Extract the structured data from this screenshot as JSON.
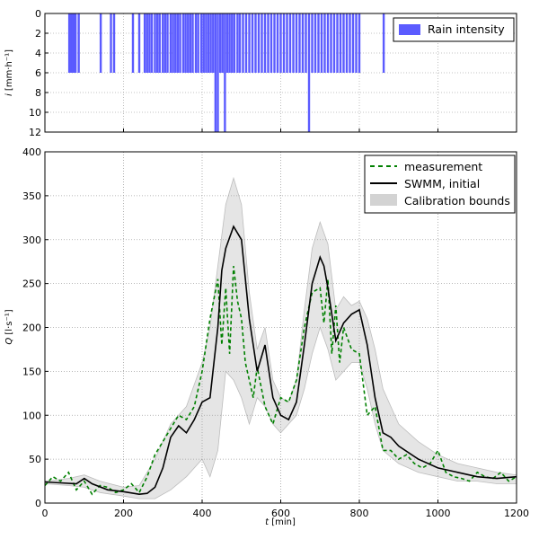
{
  "chart_data": [
    {
      "type": "bar",
      "panel": "top",
      "ylabel": "i [mm·h⁻¹]",
      "ylim": [
        12,
        0
      ],
      "y_inverted": true,
      "yticks": [
        0,
        2,
        4,
        6,
        8,
        10,
        12
      ],
      "xlim": [
        0,
        1200
      ],
      "legend": {
        "placement": "top-right",
        "entries": [
          {
            "label": "Rain intensity",
            "color": "#5b5bff"
          }
        ]
      },
      "bar_color": "#5b5bff",
      "bars_x": [
        62,
        66,
        70,
        74,
        78,
        86,
        142,
        168,
        176,
        224,
        240,
        254,
        260,
        266,
        272,
        280,
        286,
        292,
        300,
        306,
        312,
        320,
        326,
        332,
        338,
        344,
        352,
        358,
        364,
        370,
        376,
        384,
        390,
        398,
        404,
        410,
        416,
        422,
        428,
        434,
        440,
        446,
        452,
        458,
        464,
        470,
        476,
        482,
        490,
        496,
        504,
        512,
        520,
        528,
        536,
        544,
        552,
        560,
        568,
        576,
        584,
        592,
        600,
        608,
        616,
        624,
        632,
        640,
        648,
        656,
        664,
        672,
        680,
        688,
        696,
        704,
        712,
        720,
        728,
        736,
        744,
        752,
        760,
        768,
        776,
        784,
        792,
        800,
        862
      ],
      "bars_intensity": [
        6,
        6,
        6,
        6,
        6,
        6,
        6,
        6,
        6,
        6,
        6,
        6,
        6,
        6,
        6,
        6,
        6,
        6,
        6,
        6,
        6,
        6,
        6,
        6,
        6,
        6,
        6,
        6,
        6,
        6,
        6,
        6,
        6,
        6,
        6,
        6,
        6,
        6,
        6,
        12,
        12,
        6,
        6,
        12,
        6,
        6,
        6,
        6,
        6,
        6,
        6,
        6,
        6,
        6,
        6,
        6,
        6,
        6,
        6,
        6,
        6,
        6,
        6,
        6,
        6,
        6,
        6,
        6,
        6,
        6,
        6,
        12,
        6,
        6,
        6,
        6,
        6,
        6,
        6,
        6,
        6,
        6,
        6,
        6,
        6,
        6,
        6,
        6,
        6
      ],
      "grid": true
    },
    {
      "type": "line",
      "panel": "bottom",
      "xlabel": "t [min]",
      "ylabel": "Q [l·s⁻¹]",
      "xlim": [
        0,
        1200
      ],
      "ylim": [
        0,
        400
      ],
      "xticks": [
        0,
        200,
        400,
        600,
        800,
        1000,
        1200
      ],
      "yticks": [
        0,
        50,
        100,
        150,
        200,
        250,
        300,
        350,
        400
      ],
      "grid": true,
      "legend": {
        "placement": "top-right",
        "entries": [
          {
            "label": "measurement",
            "style": "dashed",
            "color": "#008000"
          },
          {
            "label": "SWMM, initial",
            "style": "solid",
            "color": "#000000"
          },
          {
            "label": "Calibration bounds",
            "style": "fill",
            "color": "#d3d3d3"
          }
        ]
      },
      "series": [
        {
          "name": "SWMM, initial",
          "color": "#000000",
          "x": [
            0,
            40,
            80,
            100,
            120,
            160,
            200,
            240,
            260,
            280,
            300,
            320,
            340,
            360,
            380,
            400,
            420,
            440,
            450,
            460,
            480,
            500,
            520,
            540,
            560,
            580,
            600,
            620,
            640,
            660,
            680,
            700,
            710,
            720,
            740,
            760,
            780,
            800,
            820,
            840,
            860,
            880,
            900,
            950,
            1000,
            1050,
            1100,
            1150,
            1200
          ],
          "y": [
            24,
            23,
            22,
            28,
            22,
            15,
            13,
            10,
            11,
            18,
            40,
            75,
            88,
            80,
            95,
            115,
            120,
            200,
            265,
            290,
            315,
            300,
            210,
            150,
            180,
            120,
            100,
            95,
            115,
            180,
            250,
            280,
            270,
            245,
            185,
            205,
            215,
            220,
            180,
            120,
            80,
            75,
            65,
            50,
            40,
            35,
            30,
            28,
            30
          ]
        },
        {
          "name": "measurement",
          "color": "#008000",
          "style": "dashed",
          "x": [
            0,
            20,
            40,
            60,
            80,
            100,
            120,
            140,
            160,
            180,
            200,
            220,
            240,
            260,
            280,
            300,
            320,
            340,
            360,
            380,
            400,
            420,
            440,
            450,
            460,
            470,
            480,
            490,
            500,
            510,
            520,
            530,
            540,
            560,
            580,
            600,
            620,
            640,
            660,
            680,
            700,
            710,
            720,
            730,
            740,
            750,
            760,
            780,
            800,
            820,
            840,
            860,
            880,
            900,
            920,
            940,
            960,
            980,
            1000,
            1020,
            1040,
            1060,
            1080,
            1100,
            1120,
            1140,
            1160,
            1180,
            1200
          ],
          "y": [
            20,
            30,
            25,
            35,
            15,
            25,
            10,
            20,
            18,
            12,
            15,
            22,
            12,
            30,
            55,
            70,
            85,
            100,
            95,
            110,
            150,
            210,
            255,
            180,
            245,
            170,
            270,
            230,
            210,
            160,
            140,
            120,
            155,
            110,
            90,
            120,
            115,
            140,
            200,
            240,
            245,
            205,
            255,
            170,
            225,
            160,
            200,
            175,
            170,
            100,
            110,
            60,
            60,
            50,
            55,
            45,
            40,
            45,
            60,
            35,
            30,
            28,
            25,
            35,
            30,
            28,
            35,
            25,
            30
          ]
        },
        {
          "name": "Calibration bounds upper",
          "color": "#d3d3d3",
          "x": [
            0,
            60,
            100,
            140,
            200,
            240,
            280,
            320,
            360,
            400,
            420,
            440,
            460,
            480,
            500,
            520,
            540,
            560,
            580,
            600,
            620,
            640,
            660,
            680,
            700,
            720,
            740,
            760,
            780,
            800,
            820,
            840,
            860,
            900,
            950,
            1000,
            1050,
            1100,
            1150,
            1200
          ],
          "y": [
            25,
            28,
            32,
            25,
            18,
            20,
            50,
            90,
            110,
            160,
            200,
            270,
            340,
            370,
            340,
            240,
            175,
            200,
            140,
            120,
            115,
            140,
            220,
            290,
            320,
            295,
            220,
            235,
            225,
            230,
            210,
            175,
            130,
            90,
            70,
            55,
            45,
            40,
            35,
            32
          ]
        },
        {
          "name": "Calibration bounds lower",
          "color": "#d3d3d3",
          "x": [
            0,
            60,
            100,
            140,
            200,
            240,
            280,
            320,
            360,
            400,
            420,
            440,
            460,
            480,
            500,
            520,
            540,
            560,
            580,
            600,
            620,
            640,
            660,
            680,
            700,
            720,
            740,
            760,
            780,
            800,
            820,
            840,
            860,
            900,
            950,
            1000,
            1050,
            1100,
            1150,
            1200
          ],
          "y": [
            22,
            20,
            18,
            12,
            8,
            5,
            5,
            15,
            30,
            50,
            30,
            60,
            150,
            140,
            120,
            90,
            120,
            110,
            90,
            80,
            90,
            100,
            130,
            170,
            200,
            175,
            140,
            150,
            160,
            160,
            130,
            90,
            60,
            45,
            35,
            30,
            25,
            25,
            22,
            22
          ]
        }
      ]
    }
  ],
  "labels": {
    "top_ylabel_var": "i",
    "top_ylabel_unit": " [mm·h⁻¹]",
    "bottom_ylabel_var": "Q",
    "bottom_ylabel_unit": " [l·s⁻¹]",
    "xlabel_var": "t",
    "xlabel_unit": " [min]"
  }
}
